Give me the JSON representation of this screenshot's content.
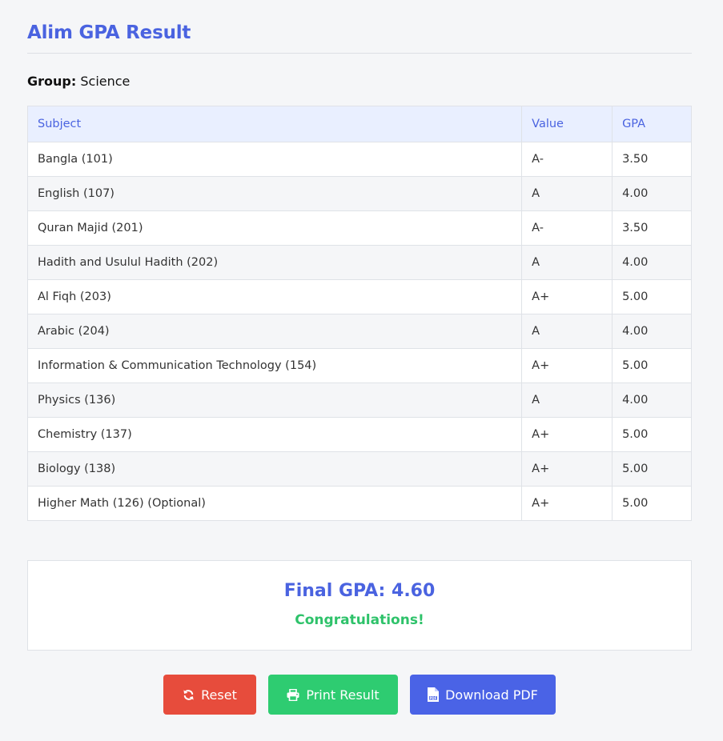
{
  "page": {
    "title": "Alim GPA Result",
    "group_label": "Group:",
    "group_value": "Science"
  },
  "table": {
    "headers": [
      "Subject",
      "Value",
      "GPA"
    ],
    "rows": [
      {
        "subject": "Bangla (101)",
        "value": "A-",
        "gpa": "3.50"
      },
      {
        "subject": "English (107)",
        "value": "A",
        "gpa": "4.00"
      },
      {
        "subject": "Quran Majid (201)",
        "value": "A-",
        "gpa": "3.50"
      },
      {
        "subject": "Hadith and Usulul Hadith (202)",
        "value": "A",
        "gpa": "4.00"
      },
      {
        "subject": "Al Fiqh (203)",
        "value": "A+",
        "gpa": "5.00"
      },
      {
        "subject": "Arabic (204)",
        "value": "A",
        "gpa": "4.00"
      },
      {
        "subject": "Information & Communication Technology (154)",
        "value": "A+",
        "gpa": "5.00"
      },
      {
        "subject": "Physics (136)",
        "value": "A",
        "gpa": "4.00"
      },
      {
        "subject": "Chemistry (137)",
        "value": "A+",
        "gpa": "5.00"
      },
      {
        "subject": "Biology (138)",
        "value": "A+",
        "gpa": "5.00"
      },
      {
        "subject": "Higher Math (126) (Optional)",
        "value": "A+",
        "gpa": "5.00"
      }
    ]
  },
  "result": {
    "final_gpa": "Final GPA: 4.60",
    "message": "Congratulations!"
  },
  "buttons": {
    "reset": {
      "label": "Reset",
      "icon": "refresh-icon",
      "color": "#e74c3c"
    },
    "print": {
      "label": "Print Result",
      "icon": "printer-icon",
      "color": "#2ecc71"
    },
    "pdf": {
      "label": "Download PDF",
      "icon": "pdf-file-icon",
      "color": "#4a63e6"
    }
  },
  "colors": {
    "accent": "#4a63e0",
    "success": "#2ec26a",
    "header_bg": "#e9efff"
  }
}
